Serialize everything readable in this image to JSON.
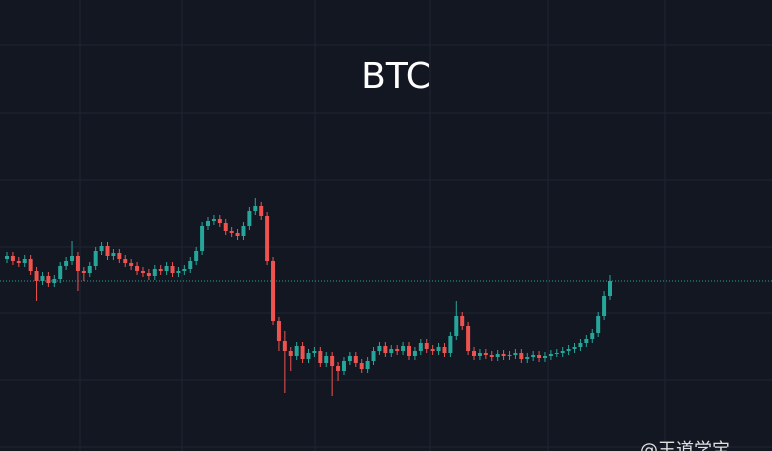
{
  "chart_data": {
    "type": "candlestick",
    "title": "BTC",
    "watermark": "@王道学宝",
    "up_color": "#26a69a",
    "down_color": "#ef5350",
    "ylim": [
      0,
      451
    ],
    "open": [
      192,
      195,
      190,
      188,
      192,
      180,
      170,
      175,
      168,
      172,
      185,
      190,
      195,
      180,
      178,
      185,
      200,
      205,
      195,
      198,
      192,
      188,
      185,
      180,
      178,
      175,
      182,
      180,
      185,
      178,
      180,
      182,
      190,
      200,
      225,
      230,
      232,
      228,
      220,
      218,
      215,
      225,
      240,
      245,
      235,
      190,
      130,
      110,
      100,
      95,
      105,
      92,
      98,
      100,
      88,
      95,
      85,
      80,
      90,
      95,
      88,
      82,
      90,
      100,
      105,
      98,
      102,
      100,
      105,
      95,
      100,
      108,
      102,
      100,
      104,
      98,
      115,
      135,
      125,
      100,
      95,
      98,
      96,
      94,
      97,
      95,
      96,
      98,
      92,
      94,
      96,
      93,
      95,
      97,
      98,
      100,
      102,
      104,
      108,
      112,
      118,
      135,
      155
    ],
    "high": [
      199,
      199,
      194,
      196,
      196,
      184,
      179,
      179,
      176,
      189,
      194,
      210,
      199,
      184,
      189,
      204,
      209,
      209,
      202,
      202,
      196,
      192,
      189,
      184,
      182,
      186,
      186,
      189,
      189,
      184,
      186,
      194,
      204,
      229,
      234,
      236,
      236,
      232,
      224,
      222,
      229,
      244,
      253,
      249,
      239,
      194,
      134,
      120,
      104,
      109,
      109,
      102,
      104,
      104,
      99,
      99,
      89,
      94,
      99,
      99,
      92,
      94,
      104,
      109,
      109,
      106,
      106,
      109,
      109,
      104,
      112,
      112,
      106,
      108,
      108,
      119,
      150,
      139,
      129,
      104,
      102,
      102,
      100,
      101,
      101,
      100,
      102,
      102,
      98,
      100,
      100,
      99,
      101,
      102,
      104,
      106,
      108,
      112,
      116,
      122,
      139,
      160,
      176
    ],
    "low": [
      188,
      186,
      184,
      184,
      176,
      150,
      166,
      164,
      164,
      168,
      181,
      186,
      160,
      170,
      174,
      181,
      196,
      191,
      191,
      188,
      184,
      181,
      176,
      174,
      171,
      171,
      176,
      176,
      174,
      174,
      176,
      178,
      186,
      196,
      221,
      226,
      224,
      216,
      214,
      211,
      211,
      221,
      236,
      231,
      186,
      126,
      100,
      58,
      80,
      91,
      88,
      88,
      94,
      84,
      84,
      55,
      70,
      76,
      86,
      84,
      78,
      78,
      86,
      96,
      94,
      94,
      96,
      96,
      91,
      91,
      96,
      98,
      96,
      96,
      94,
      94,
      111,
      121,
      96,
      91,
      91,
      92,
      90,
      90,
      91,
      91,
      92,
      88,
      88,
      90,
      89,
      89,
      91,
      94,
      94,
      96,
      98,
      100,
      104,
      108,
      114,
      131,
      151
    ],
    "close": [
      195,
      190,
      188,
      192,
      180,
      170,
      175,
      168,
      172,
      185,
      190,
      195,
      180,
      178,
      185,
      200,
      205,
      195,
      198,
      192,
      188,
      185,
      180,
      178,
      175,
      182,
      180,
      185,
      178,
      180,
      182,
      190,
      200,
      225,
      230,
      232,
      228,
      220,
      218,
      215,
      225,
      240,
      245,
      235,
      190,
      130,
      110,
      100,
      95,
      105,
      92,
      98,
      100,
      88,
      95,
      85,
      80,
      90,
      95,
      88,
      82,
      90,
      100,
      105,
      98,
      102,
      100,
      105,
      95,
      100,
      108,
      102,
      100,
      104,
      98,
      115,
      135,
      125,
      100,
      95,
      98,
      96,
      94,
      97,
      95,
      96,
      98,
      92,
      94,
      96,
      93,
      95,
      97,
      98,
      100,
      102,
      104,
      108,
      112,
      118,
      135,
      155,
      170
    ]
  }
}
